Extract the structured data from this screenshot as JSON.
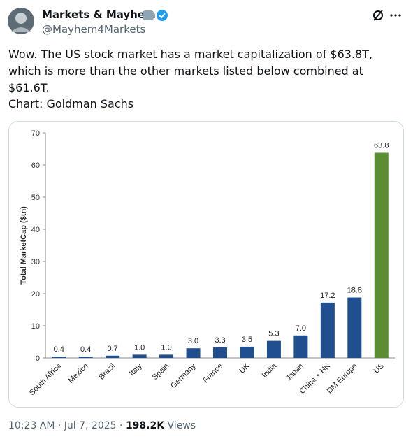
{
  "tweet": {
    "name": "Markets & Mayhem",
    "handle": "@Mayhem4Markets",
    "text": "Wow. The US stock market has a market capitalization of $63.8T, which is more than the other markets listed below combined at $61.6T.",
    "source": "Chart: Goldman Sachs",
    "timestamp": "10:23 AM · Jul 7, 2025 ·",
    "views": "198.2K",
    "views_label": "Views"
  },
  "chart_data": {
    "type": "bar",
    "ylabel": "Total MarketCap ($tn)",
    "categories": [
      "South Africa",
      "Mexico",
      "Brazil",
      "Italy",
      "Spain",
      "Germany",
      "France",
      "UK",
      "India",
      "Japan",
      "China + HK",
      "DM Europe",
      "US"
    ],
    "values": [
      0.4,
      0.4,
      0.7,
      1.0,
      1.0,
      3.0,
      3.3,
      3.5,
      5.3,
      7.0,
      17.2,
      18.8,
      63.8
    ],
    "value_labels": [
      "0.4",
      "0.4",
      "0.7",
      "1.0",
      "1.0",
      "3.0",
      "3.3",
      "3.5",
      "5.3",
      "7.0",
      "17.2",
      "18.8",
      "63.8"
    ],
    "colors": [
      "#1f4f8f",
      "#1f4f8f",
      "#1f4f8f",
      "#1f4f8f",
      "#1f4f8f",
      "#1f4f8f",
      "#1f4f8f",
      "#1f4f8f",
      "#1f4f8f",
      "#1f4f8f",
      "#1f4f8f",
      "#1f4f8f",
      "#5b8e32"
    ],
    "ylim": [
      0,
      70
    ],
    "yticks": [
      0,
      10,
      20,
      30,
      40,
      50,
      60,
      70
    ],
    "grid": false
  }
}
